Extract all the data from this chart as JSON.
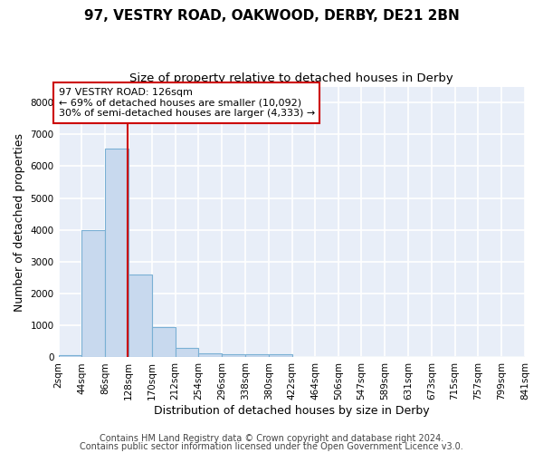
{
  "title": "97, VESTRY ROAD, OAKWOOD, DERBY, DE21 2BN",
  "subtitle": "Size of property relative to detached houses in Derby",
  "xlabel": "Distribution of detached houses by size in Derby",
  "ylabel": "Number of detached properties",
  "footer_line1": "Contains HM Land Registry data © Crown copyright and database right 2024.",
  "footer_line2": "Contains public sector information licensed under the Open Government Licence v3.0.",
  "bar_color": "#c8d9ee",
  "bar_edge_color": "#7ab0d4",
  "annotation_box_text": "97 VESTRY ROAD: 126sqm\n← 69% of detached houses are smaller (10,092)\n30% of semi-detached houses are larger (4,333) →",
  "annotation_box_color": "#ffffff",
  "annotation_box_edge_color": "#cc0000",
  "vline_color": "#cc0000",
  "vline_x": 126,
  "bin_edges": [
    2,
    44,
    86,
    128,
    170,
    212,
    254,
    296,
    338,
    380,
    422,
    464,
    506,
    547,
    589,
    631,
    673,
    715,
    757,
    799,
    841
  ],
  "bar_heights": [
    80,
    4000,
    6550,
    2600,
    950,
    300,
    120,
    90,
    90,
    90,
    0,
    0,
    0,
    0,
    0,
    0,
    0,
    0,
    0,
    0
  ],
  "ylim": [
    0,
    8500
  ],
  "yticks": [
    0,
    1000,
    2000,
    3000,
    4000,
    5000,
    6000,
    7000,
    8000
  ],
  "background_color": "#e8eef8",
  "grid_color": "#ffffff",
  "title_fontsize": 11,
  "subtitle_fontsize": 9.5,
  "tick_label_fontsize": 7.5,
  "axis_label_fontsize": 9,
  "footer_fontsize": 7,
  "annotation_fontsize": 8
}
